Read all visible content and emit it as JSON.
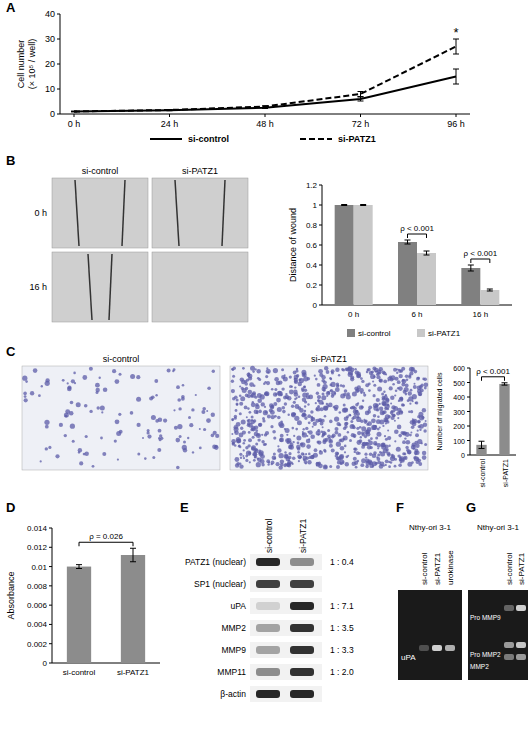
{
  "chart_data": [
    {
      "type": "line",
      "y_label": "Cell number (× 10⁵ / well)",
      "categories": [
        "0 h",
        "24 h",
        "48 h",
        "72 h",
        "96 h"
      ],
      "series": [
        {
          "name": "si-control",
          "color": "#000000",
          "line_style": "solid",
          "values": [
            1,
            1.5,
            2.5,
            6,
            15
          ],
          "errors": [
            0.1,
            0.2,
            0.3,
            0.8,
            3
          ]
        },
        {
          "name": "si-PATZ1",
          "color": "#000000",
          "line_style": "dashed",
          "values": [
            1,
            1.6,
            3,
            8,
            27
          ],
          "errors": [
            0.1,
            0.2,
            0.3,
            1,
            3
          ]
        }
      ],
      "ylim": [
        0,
        40
      ],
      "yticks": [
        0,
        10,
        20,
        30,
        40
      ],
      "grid": false,
      "legend": "bottom",
      "annotations": [
        {
          "text": "*",
          "category": "96 h"
        }
      ]
    },
    {
      "type": "bar",
      "y_label": "Distance of wound",
      "categories": [
        "0 h",
        "6 h",
        "16 h"
      ],
      "series": [
        {
          "name": "si-control",
          "color": "#808080",
          "values": [
            1,
            0.63,
            0.37
          ],
          "errors": [
            0.005,
            0.02,
            0.03
          ]
        },
        {
          "name": "si-PATZ1",
          "color": "#c8c8c8",
          "values": [
            1,
            0.52,
            0.15
          ],
          "errors": [
            0.005,
            0.02,
            0.01
          ]
        }
      ],
      "ylim": [
        0,
        1.2
      ],
      "yticks": [
        0,
        0.2,
        0.4,
        0.6,
        0.8,
        1,
        1.2
      ],
      "grid": false,
      "legend": "bottom",
      "annotations": [
        {
          "text": "ρ < 0.001",
          "category": "6 h"
        },
        {
          "text": "ρ < 0.001",
          "category": "16 h"
        }
      ]
    },
    {
      "type": "bar",
      "y_label": "Number of migrated cells",
      "categories": [
        "si-control",
        "si-PATZ1"
      ],
      "values": [
        70,
        490
      ],
      "errors": [
        25,
        8
      ],
      "colors": [
        "#8c8c8c",
        "#8c8c8c"
      ],
      "ylim": [
        0,
        600
      ],
      "yticks": [
        0,
        100,
        200,
        300,
        400,
        500,
        600
      ],
      "grid": false,
      "annotations": [
        {
          "text": "ρ < 0.001"
        }
      ]
    },
    {
      "type": "bar",
      "y_label": "Absorbance",
      "categories": [
        "si-control",
        "si-PATZ1"
      ],
      "values": [
        0.01,
        0.0112
      ],
      "errors": [
        0.0002,
        0.0007
      ],
      "colors": [
        "#8c8c8c",
        "#8c8c8c"
      ],
      "ylim": [
        0,
        0.014
      ],
      "yticks": [
        0,
        0.002,
        0.004,
        0.006,
        0.008,
        0.01,
        0.012,
        0.014
      ],
      "grid": false,
      "annotations": [
        {
          "text": "ρ = 0.026"
        }
      ]
    }
  ],
  "figure": {
    "panel_labels": [
      "A",
      "B",
      "C",
      "D",
      "E",
      "F",
      "G"
    ],
    "wound_images": {
      "columns": [
        "si-control",
        "si-PATZ1"
      ],
      "rows": [
        "0 h",
        "16 h"
      ]
    },
    "migration_images": {
      "columns": [
        "si-control",
        "si-PATZ1"
      ]
    },
    "western_blot": {
      "lanes": [
        "si-control",
        "si-PATZ1"
      ],
      "rows": [
        {
          "label": "PATZ1 (nuclear)",
          "ratio": "1 : 0.4"
        },
        {
          "label": "SP1 (nuclear)"
        },
        {
          "label": "uPA",
          "ratio": "1 : 7.1"
        },
        {
          "label": "MMP2",
          "ratio": "1 : 3.5"
        },
        {
          "label": "MMP9",
          "ratio": "1 : 3.3"
        },
        {
          "label": "MMP11",
          "ratio": "1 : 2.0"
        },
        {
          "label": "β-actin"
        }
      ]
    },
    "zymography_f": {
      "cell_line": "Nthy-ori 3-1",
      "lanes": [
        "si-control",
        "si-PATZ1",
        "urokinase"
      ],
      "bands": [
        "uPA"
      ]
    },
    "zymography_g": {
      "cell_line": "Nthy-ori 3-1",
      "lanes": [
        "si-control",
        "si-PATZ1"
      ],
      "bands": [
        "Pro MMP9",
        "Pro MMP2",
        "MMP2"
      ]
    }
  }
}
